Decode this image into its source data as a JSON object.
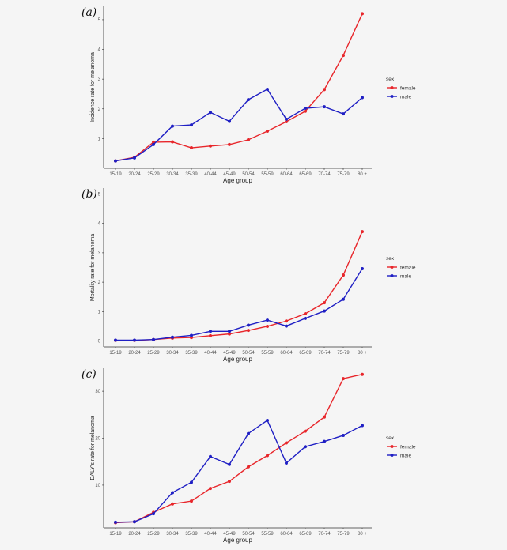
{
  "chart_data": [
    {
      "type": "line",
      "panel_label": "(a)",
      "xlabel": "Age group",
      "ylabel": "Incidence rate for melanoma",
      "categories": [
        "15-19",
        "20-24",
        "25-29",
        "30-34",
        "35-39",
        "40-44",
        "45-49",
        "50-54",
        "55-59",
        "60-64",
        "65-69",
        "70-74",
        "75-79",
        "80 +"
      ],
      "yticks": [
        1,
        2,
        3,
        4,
        5
      ],
      "ylim": [
        0,
        5.45
      ],
      "grid": false,
      "legend": {
        "title": "sex",
        "position": "right"
      },
      "series": [
        {
          "name": "female",
          "color": "#e8262b",
          "values": [
            0.25,
            0.37,
            0.88,
            0.89,
            0.69,
            0.75,
            0.8,
            0.96,
            1.25,
            1.57,
            1.92,
            2.65,
            3.8,
            5.2
          ]
        },
        {
          "name": "male",
          "color": "#1f1fc4",
          "values": [
            0.25,
            0.35,
            0.8,
            1.42,
            1.46,
            1.88,
            1.58,
            2.31,
            2.66,
            1.65,
            2.02,
            2.07,
            1.83,
            2.38
          ]
        }
      ]
    },
    {
      "type": "line",
      "panel_label": "(b)",
      "xlabel": "Age group",
      "ylabel": "Mortality rate for melanoma",
      "categories": [
        "15-19",
        "20-24",
        "25-29",
        "30-34",
        "35-39",
        "40-44",
        "45-49",
        "50-54",
        "55-59",
        "60-64",
        "65-69",
        "70-74",
        "75-79",
        "80 +"
      ],
      "yticks": [
        0,
        1,
        2,
        3,
        4,
        5
      ],
      "ylim": [
        -0.2,
        5.2
      ],
      "grid": false,
      "legend": {
        "title": "sex",
        "position": "right"
      },
      "series": [
        {
          "name": "female",
          "color": "#e8262b",
          "values": [
            0.02,
            0.02,
            0.05,
            0.1,
            0.12,
            0.18,
            0.24,
            0.36,
            0.5,
            0.68,
            0.93,
            1.3,
            2.24,
            3.72
          ]
        },
        {
          "name": "male",
          "color": "#1f1fc4",
          "values": [
            0.03,
            0.03,
            0.05,
            0.13,
            0.19,
            0.33,
            0.33,
            0.54,
            0.71,
            0.51,
            0.77,
            1.02,
            1.42,
            2.46
          ]
        }
      ]
    },
    {
      "type": "line",
      "panel_label": "(c)",
      "xlabel": "Age group",
      "ylabel": "DALY's rate for melanoma",
      "categories": [
        "15-19",
        "20-24",
        "25-29",
        "30-34",
        "35-39",
        "40-44",
        "45-49",
        "50-54",
        "55-59",
        "60-64",
        "65-69",
        "70-74",
        "75-79",
        "80 +"
      ],
      "yticks": [
        10,
        20,
        30
      ],
      "ylim": [
        0.9,
        34.9
      ],
      "grid": false,
      "legend": {
        "title": "sex",
        "position": "right"
      },
      "series": [
        {
          "name": "female",
          "color": "#e8262b",
          "values": [
            2.0,
            2.2,
            4.2,
            6.0,
            6.6,
            9.3,
            10.8,
            13.9,
            16.3,
            19.0,
            21.5,
            24.5,
            32.7,
            33.6
          ]
        },
        {
          "name": "male",
          "color": "#1f1fc4",
          "values": [
            2.1,
            2.2,
            3.9,
            8.4,
            10.6,
            16.1,
            14.4,
            21.0,
            23.8,
            14.7,
            18.2,
            19.3,
            20.6,
            22.7
          ]
        }
      ]
    }
  ]
}
